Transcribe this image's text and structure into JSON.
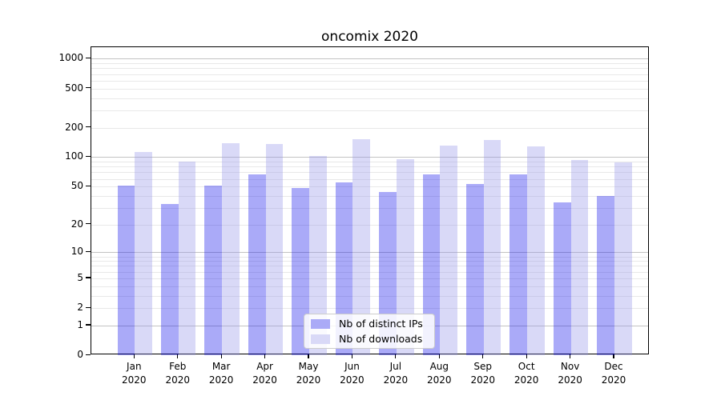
{
  "title": "oncomix 2020",
  "chart_data": {
    "type": "bar",
    "title": "oncomix 2020",
    "categories": [
      "Jan",
      "Feb",
      "Mar",
      "Apr",
      "May",
      "Jun",
      "Jul",
      "Aug",
      "Sep",
      "Oct",
      "Nov",
      "Dec"
    ],
    "category_year": "2020",
    "series": [
      {
        "name": "Nb of distinct IPs",
        "color": "#aaaaf7",
        "values": [
          51,
          33,
          51,
          66,
          48,
          55,
          44,
          67,
          53,
          66,
          34,
          40
        ]
      },
      {
        "name": "Nb of downloads",
        "color": "#d9d9f7",
        "values": [
          114,
          90,
          140,
          137,
          102,
          152,
          96,
          132,
          150,
          129,
          93,
          88
        ]
      }
    ],
    "xlabel": "",
    "ylabel": "",
    "yticks": [
      0,
      1,
      2,
      5,
      10,
      20,
      50,
      100,
      200,
      500,
      1000
    ],
    "scale": "log10(1+y)",
    "ylim": [
      0,
      1300
    ],
    "grid": true,
    "legend_position": "lower-center",
    "colors": {
      "bar_ips_rgba": "rgba(12,12,235,0.35)",
      "bar_downloads_rgba": "rgba(146,146,232,0.35)",
      "grid_major": "#c3c3c3",
      "grid_minor": "#e8e8e8",
      "axis": "#000000"
    }
  }
}
